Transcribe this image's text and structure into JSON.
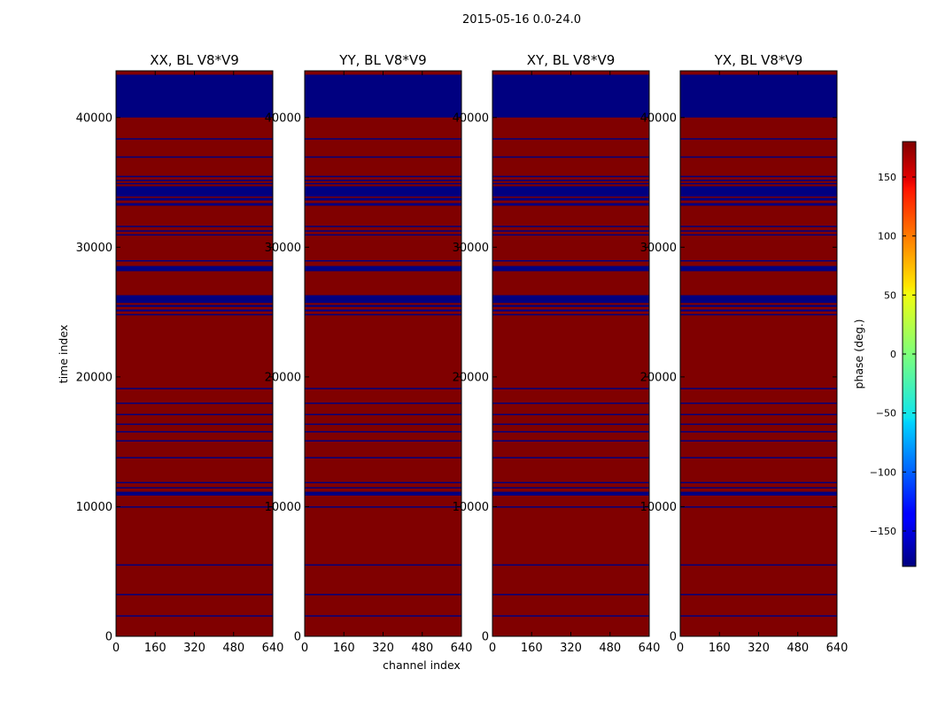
{
  "figure": {
    "suptitle": "2015-05-16 0.0-24.0"
  },
  "colors": {
    "high": "#800000",
    "low": "#000080"
  },
  "chart_data": {
    "type": "heatmap",
    "ylabel": "time index",
    "xlabel": "channel index",
    "xlim": [
      0,
      640
    ],
    "ylim": [
      0,
      43600
    ],
    "xticks": [
      0,
      160,
      320,
      480,
      640
    ],
    "yticks": [
      0,
      10000,
      20000,
      30000,
      40000
    ],
    "colorbar": {
      "label": "phase (deg.)",
      "range": [
        -180,
        180
      ],
      "ticks": [
        -150,
        -100,
        -50,
        0,
        50,
        100,
        150
      ],
      "colormap": "jet"
    },
    "background_phase_deg": 180,
    "low_phase_rows": [
      [
        1520,
        1620
      ],
      [
        3170,
        3270
      ],
      [
        5450,
        5550
      ],
      [
        9920,
        10020
      ],
      [
        10850,
        11150
      ],
      [
        11400,
        11500
      ],
      [
        11800,
        11900
      ],
      [
        13720,
        13820
      ],
      [
        15020,
        15120
      ],
      [
        15720,
        15820
      ],
      [
        16300,
        16400
      ],
      [
        17050,
        17150
      ],
      [
        17920,
        18020
      ],
      [
        19050,
        19150
      ],
      [
        24750,
        24850
      ],
      [
        25050,
        25200
      ],
      [
        25400,
        25550
      ],
      [
        25700,
        26300
      ],
      [
        28150,
        28550
      ],
      [
        28900,
        29000
      ],
      [
        30900,
        31000
      ],
      [
        31200,
        31300
      ],
      [
        31550,
        31650
      ],
      [
        33200,
        33400
      ],
      [
        33600,
        33800
      ],
      [
        33900,
        34700
      ],
      [
        34850,
        34950
      ],
      [
        35100,
        35200
      ],
      [
        35400,
        35500
      ],
      [
        36900,
        37000
      ],
      [
        38300,
        38400
      ],
      [
        40000,
        43300
      ]
    ],
    "panels": [
      {
        "title": "XX, BL V8*V9"
      },
      {
        "title": "YY, BL V8*V9"
      },
      {
        "title": "XY, BL V8*V9"
      },
      {
        "title": "YX, BL V8*V9"
      }
    ]
  }
}
